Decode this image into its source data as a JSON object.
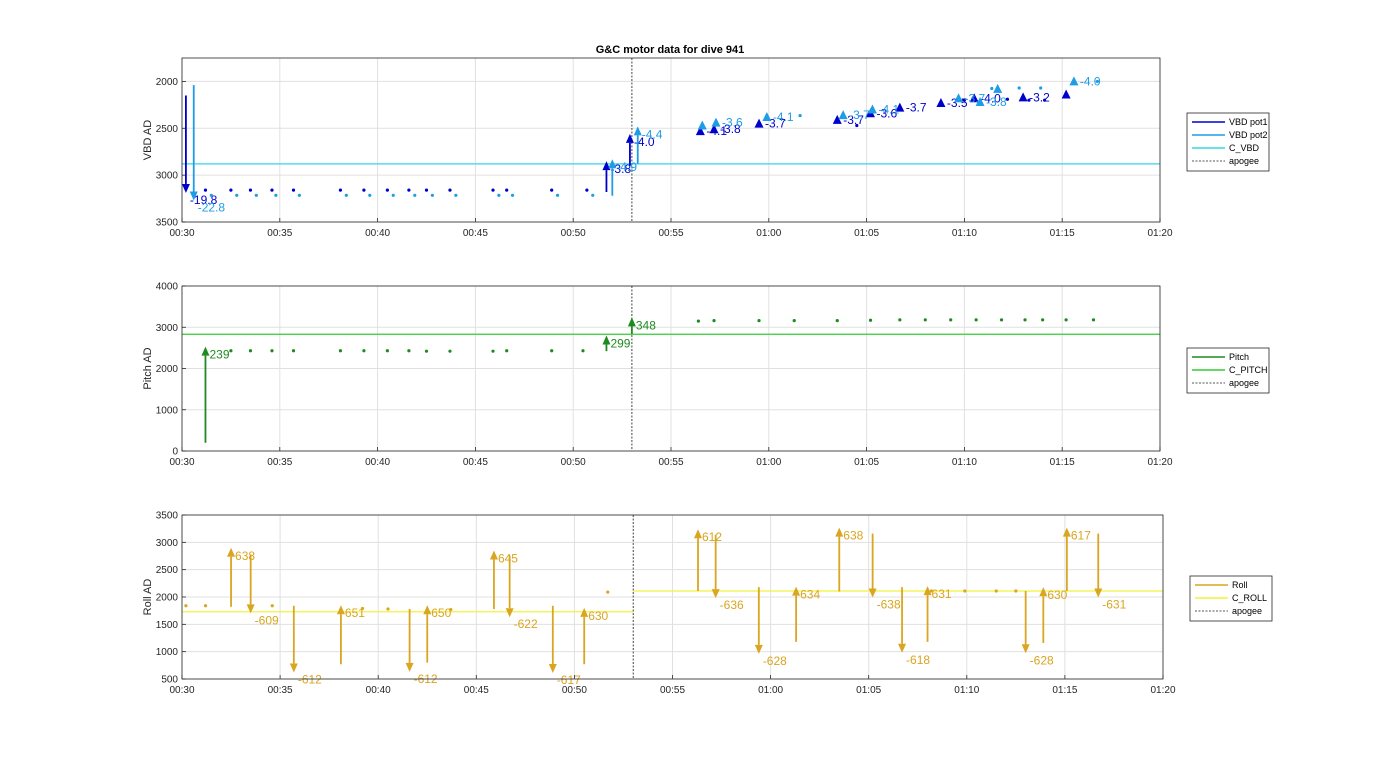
{
  "title": "G&C motor data for dive 941",
  "colors": {
    "vbd_pot1": "#0000cd",
    "vbd_pot2": "#1e9de6",
    "c_vbd": "#33d6e6",
    "pitch": "#1f8a1f",
    "c_pitch": "#33cc33",
    "roll": "#daa520",
    "c_roll": "#f2f23c",
    "apogee": "#555555"
  },
  "chart_data": [
    {
      "type": "scatter",
      "id": "vbd",
      "ylabel": "VBD AD",
      "yreverse": true,
      "xlim": [
        30,
        80
      ],
      "ylim": [
        3500,
        1750
      ],
      "xticks": [
        30,
        35,
        40,
        45,
        50,
        55,
        60,
        65,
        70,
        75,
        80
      ],
      "xticklabels": [
        "00:30",
        "00:35",
        "00:40",
        "00:45",
        "00:50",
        "00:55",
        "01:00",
        "01:05",
        "01:10",
        "01:15",
        "01:20"
      ],
      "yticks": [
        2000,
        2500,
        3000,
        3500
      ],
      "yticklabels": [
        "2000",
        "2500",
        "3000",
        "3500"
      ],
      "legend": {
        "position": "right",
        "entries": [
          "VBD pot1",
          "VBD pot2",
          "C_VBD",
          "apogee"
        ]
      },
      "apogee_x": 53,
      "hlines": [
        {
          "name": "C_VBD",
          "y": 2880
        }
      ],
      "series": [
        {
          "name": "VBD pot1",
          "points": [
            [
              31.2,
              3160
            ],
            [
              32.5,
              3160
            ],
            [
              33.5,
              3160
            ],
            [
              34.6,
              3160
            ],
            [
              35.7,
              3160
            ],
            [
              38.1,
              3160
            ],
            [
              39.3,
              3160
            ],
            [
              40.5,
              3160
            ],
            [
              41.6,
              3160
            ],
            [
              42.5,
              3160
            ],
            [
              43.7,
              3160
            ],
            [
              45.9,
              3160
            ],
            [
              46.6,
              3160
            ],
            [
              48.9,
              3160
            ],
            [
              50.7,
              3160
            ],
            [
              64.5,
              2470
            ],
            [
              70.0,
              2200
            ],
            [
              72.2,
              2190
            ],
            [
              73.3,
              2200
            ],
            [
              74.1,
              2200
            ]
          ],
          "arrows": [
            {
              "x": 30.2,
              "from": 2150,
              "to": 3190,
              "label": "-19.8"
            },
            {
              "x": 51.7,
              "from": 3180,
              "to": 2850,
              "label": "-3.8"
            },
            {
              "x": 52.9,
              "from": 2900,
              "to": 2560,
              "label": "-4.0"
            }
          ],
          "markers": [
            {
              "x": 56.5,
              "y": 2530,
              "label": "-4.1"
            },
            {
              "x": 57.2,
              "y": 2510,
              "label": "-3.8"
            },
            {
              "x": 59.5,
              "y": 2450,
              "label": "-3.7"
            },
            {
              "x": 63.5,
              "y": 2410,
              "label": "-3.7"
            },
            {
              "x": 65.2,
              "y": 2340,
              "label": "-3.6"
            },
            {
              "x": 66.7,
              "y": 2280,
              "label": "-3.7"
            },
            {
              "x": 68.8,
              "y": 2230,
              "label": "-3.5"
            },
            {
              "x": 70.5,
              "y": 2180,
              "label": "-4.0"
            },
            {
              "x": 73.0,
              "y": 2170,
              "label": "-3.2"
            },
            {
              "x": 75.2,
              "y": 2140,
              "label": ""
            }
          ]
        },
        {
          "name": "VBD pot2",
          "points": [
            [
              31.5,
              3215
            ],
            [
              32.8,
              3215
            ],
            [
              33.8,
              3215
            ],
            [
              34.8,
              3215
            ],
            [
              36.0,
              3215
            ],
            [
              38.4,
              3215
            ],
            [
              39.6,
              3215
            ],
            [
              40.8,
              3215
            ],
            [
              41.9,
              3215
            ],
            [
              42.8,
              3215
            ],
            [
              44.0,
              3215
            ],
            [
              46.2,
              3215
            ],
            [
              46.9,
              3215
            ],
            [
              49.2,
              3215
            ],
            [
              51.0,
              3215
            ],
            [
              61.6,
              2365
            ],
            [
              71.4,
              2075
            ],
            [
              72.8,
              2070
            ],
            [
              73.9,
              2070
            ],
            [
              76.8,
              2000
            ]
          ],
          "arrows": [
            {
              "x": 30.6,
              "from": 2040,
              "to": 3270,
              "label": "-22.8"
            },
            {
              "x": 52.0,
              "from": 3220,
              "to": 2830,
              "label": "-4.9"
            },
            {
              "x": 53.3,
              "from": 2880,
              "to": 2480,
              "label": "-4.4"
            }
          ],
          "markers": [
            {
              "x": 56.6,
              "y": 2470,
              "label": ""
            },
            {
              "x": 57.3,
              "y": 2440,
              "label": "-3.6"
            },
            {
              "x": 59.9,
              "y": 2380,
              "label": "-4.1"
            },
            {
              "x": 63.8,
              "y": 2360,
              "label": "-3.7"
            },
            {
              "x": 65.3,
              "y": 2300,
              "label": "-4.1"
            },
            {
              "x": 69.7,
              "y": 2180,
              "label": "-3.7"
            },
            {
              "x": 70.8,
              "y": 2220,
              "label": "-3.8"
            },
            {
              "x": 71.7,
              "y": 2080,
              "label": ""
            },
            {
              "x": 75.6,
              "y": 2000,
              "label": "-4.0"
            }
          ]
        }
      ]
    },
    {
      "type": "scatter",
      "id": "pitch",
      "ylabel": "Pitch AD",
      "yreverse": false,
      "xlim": [
        30,
        80
      ],
      "ylim": [
        0,
        4000
      ],
      "xticks": [
        30,
        35,
        40,
        45,
        50,
        55,
        60,
        65,
        70,
        75,
        80
      ],
      "xticklabels": [
        "00:30",
        "00:35",
        "00:40",
        "00:45",
        "00:50",
        "00:55",
        "01:00",
        "01:05",
        "01:10",
        "01:15",
        "01:20"
      ],
      "yticks": [
        0,
        1000,
        2000,
        3000,
        4000
      ],
      "yticklabels": [
        "0",
        "1000",
        "2000",
        "3000",
        "4000"
      ],
      "legend": {
        "position": "right",
        "entries": [
          "Pitch",
          "C_PITCH",
          "apogee"
        ]
      },
      "apogee_x": 53,
      "hlines": [
        {
          "name": "C_PITCH",
          "y": 2830
        }
      ],
      "series": [
        {
          "name": "Pitch",
          "points": [
            [
              32.5,
              2430
            ],
            [
              33.5,
              2430
            ],
            [
              34.6,
              2430
            ],
            [
              35.7,
              2430
            ],
            [
              38.1,
              2430
            ],
            [
              39.3,
              2430
            ],
            [
              40.5,
              2430
            ],
            [
              41.6,
              2430
            ],
            [
              42.5,
              2420
            ],
            [
              43.7,
              2420
            ],
            [
              45.9,
              2420
            ],
            [
              46.6,
              2430
            ],
            [
              48.9,
              2430
            ],
            [
              50.5,
              2430
            ],
            [
              56.4,
              3150
            ],
            [
              57.2,
              3160
            ],
            [
              59.5,
              3160
            ],
            [
              61.3,
              3160
            ],
            [
              63.5,
              3160
            ],
            [
              65.2,
              3170
            ],
            [
              66.7,
              3180
            ],
            [
              68.0,
              3180
            ],
            [
              69.3,
              3180
            ],
            [
              70.6,
              3180
            ],
            [
              71.9,
              3180
            ],
            [
              73.1,
              3180
            ],
            [
              74.0,
              3180
            ],
            [
              75.2,
              3180
            ],
            [
              76.6,
              3180
            ]
          ],
          "arrows": [
            {
              "x": 31.2,
              "from": 200,
              "to": 2530,
              "label": "239"
            },
            {
              "x": 51.7,
              "from": 2420,
              "to": 2800,
              "label": "299"
            },
            {
              "x": 53.0,
              "from": 2840,
              "to": 3240,
              "label": "348"
            }
          ],
          "markers": []
        }
      ]
    },
    {
      "type": "scatter",
      "id": "roll",
      "ylabel": "Roll AD",
      "yreverse": false,
      "xlim": [
        30,
        80
      ],
      "ylim": [
        500,
        3500
      ],
      "xticks": [
        30,
        35,
        40,
        45,
        50,
        55,
        60,
        65,
        70,
        75,
        80
      ],
      "xticklabels": [
        "00:30",
        "00:35",
        "00:40",
        "00:45",
        "00:50",
        "00:55",
        "01:00",
        "01:05",
        "01:10",
        "01:15",
        "01:20"
      ],
      "yticks": [
        500,
        1000,
        1500,
        2000,
        2500,
        3000,
        3500
      ],
      "yticklabels": [
        "500",
        "1000",
        "1500",
        "2000",
        "2500",
        "3000",
        "3500"
      ],
      "legend": {
        "position": "right",
        "entries": [
          "Roll",
          "C_ROLL",
          "apogee"
        ]
      },
      "apogee_x": 53,
      "hlines": [
        {
          "name": "C_ROLL",
          "y": 1730,
          "x0": 30,
          "x1": 53
        },
        {
          "name": "C_ROLL",
          "y": 2110,
          "x0": 53,
          "x1": 80
        }
      ],
      "series": [
        {
          "name": "Roll",
          "points": [
            [
              30.2,
              1840
            ],
            [
              31.2,
              1840
            ],
            [
              34.6,
              1840
            ],
            [
              39.2,
              1790
            ],
            [
              40.5,
              1780
            ],
            [
              43.7,
              1770
            ],
            [
              51.7,
              2090
            ],
            [
              68.2,
              2110
            ],
            [
              69.9,
              2110
            ],
            [
              71.5,
              2110
            ],
            [
              72.5,
              2110
            ]
          ],
          "arrows": [
            {
              "x": 32.5,
              "from": 1820,
              "to": 2900,
              "label": "638"
            },
            {
              "x": 33.5,
              "from": 2780,
              "to": 1700,
              "label": "-609"
            },
            {
              "x": 35.7,
              "from": 1840,
              "to": 620,
              "label": "-612"
            },
            {
              "x": 38.1,
              "from": 770,
              "to": 1850,
              "label": "651"
            },
            {
              "x": 41.6,
              "from": 1780,
              "to": 630,
              "label": "-612"
            },
            {
              "x": 42.5,
              "from": 800,
              "to": 1850,
              "label": "650"
            },
            {
              "x": 45.9,
              "from": 1780,
              "to": 2850,
              "label": "645"
            },
            {
              "x": 46.7,
              "from": 2760,
              "to": 1630,
              "label": "-622"
            },
            {
              "x": 48.9,
              "from": 1840,
              "to": 610,
              "label": "-617"
            },
            {
              "x": 50.5,
              "from": 770,
              "to": 1800,
              "label": "630"
            },
            {
              "x": 56.3,
              "from": 2110,
              "to": 3240,
              "label": "612"
            },
            {
              "x": 57.2,
              "from": 3140,
              "to": 1980,
              "label": "-636"
            },
            {
              "x": 59.4,
              "from": 2180,
              "to": 960,
              "label": "-628"
            },
            {
              "x": 61.3,
              "from": 1180,
              "to": 2190,
              "label": "634"
            },
            {
              "x": 63.5,
              "from": 2100,
              "to": 3270,
              "label": "638"
            },
            {
              "x": 65.2,
              "from": 3160,
              "to": 1990,
              "label": "-638"
            },
            {
              "x": 66.7,
              "from": 2180,
              "to": 980,
              "label": "-618"
            },
            {
              "x": 68.0,
              "from": 1180,
              "to": 2200,
              "label": "631"
            },
            {
              "x": 73.0,
              "from": 2110,
              "to": 970,
              "label": "-628"
            },
            {
              "x": 73.9,
              "from": 1160,
              "to": 2180,
              "label": "630"
            },
            {
              "x": 75.1,
              "from": 2110,
              "to": 3270,
              "label": "617"
            },
            {
              "x": 76.7,
              "from": 3160,
              "to": 1990,
              "label": "-631"
            }
          ],
          "markers": []
        }
      ]
    }
  ]
}
